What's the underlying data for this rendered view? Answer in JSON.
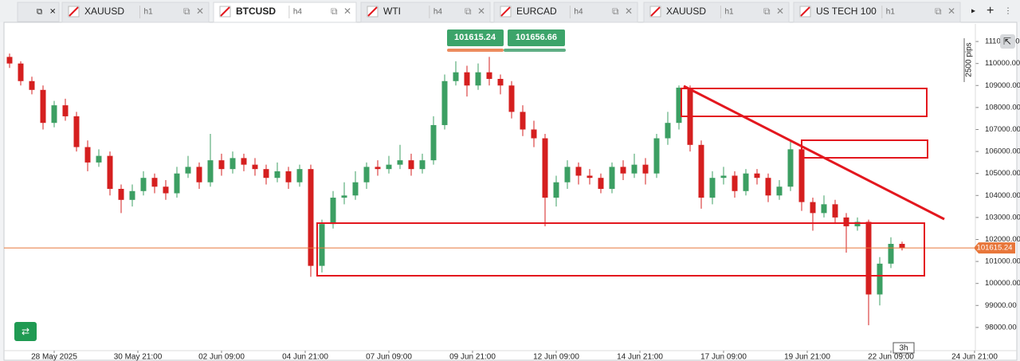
{
  "tabs": [
    {
      "symbol": "XAUUSD",
      "timeframe": "h1"
    },
    {
      "symbol": "BTCUSD",
      "timeframe": "h4"
    },
    {
      "symbol": "WTI",
      "timeframe": "h4"
    },
    {
      "symbol": "EURCAD",
      "timeframe": "h4"
    },
    {
      "symbol": "XAUUSD",
      "timeframe": "h1"
    },
    {
      "symbol": "US TECH 100",
      "timeframe": "h1"
    }
  ],
  "chart_data": {
    "type": "candlestick",
    "ylim": [
      97000,
      111800
    ],
    "yticks": [
      {
        "value": 98000,
        "label": "98000.00"
      },
      {
        "value": 99000,
        "label": "99000.00"
      },
      {
        "value": 100000,
        "label": "100000.00"
      },
      {
        "value": 101000,
        "label": "101000.00"
      },
      {
        "value": 102000,
        "label": "102000.00"
      },
      {
        "value": 103000,
        "label": "103000.00"
      },
      {
        "value": 104000,
        "label": "104000.00"
      },
      {
        "value": 105000,
        "label": "105000.00"
      },
      {
        "value": 106000,
        "label": "106000.00"
      },
      {
        "value": 107000,
        "label": "107000.00"
      },
      {
        "value": 108000,
        "label": "108000.00"
      },
      {
        "value": 109000,
        "label": "109000.00"
      },
      {
        "value": 110000,
        "label": "110000.00"
      },
      {
        "value": 111000,
        "label": "111000.00"
      }
    ],
    "xtick_labels": [
      "28 May 2025",
      "30 May 21:00",
      "02 Jun 09:00",
      "04 Jun 21:00",
      "07 Jun 09:00",
      "09 Jun 21:00",
      "12 Jun 09:00",
      "14 Jun 21:00",
      "17 Jun 09:00",
      "19 Jun 21:00",
      "22 Jun 09:00",
      "24 Jun 21:00"
    ],
    "candles": {
      "open": [
        110300,
        110000,
        109200,
        108800,
        107300,
        108100,
        107600,
        106200,
        105500,
        105800,
        104300,
        103800,
        104200,
        104800,
        104400,
        104100,
        105000,
        105300,
        104600,
        105600,
        105200,
        105700,
        105400,
        105200,
        104800,
        105100,
        104600,
        105200,
        100800,
        102700,
        103900,
        104000,
        104600,
        105300,
        105200,
        105400,
        105600,
        105200,
        105600,
        107200,
        109200,
        109600,
        109000,
        109600,
        109300,
        109000,
        107800,
        107000,
        106600,
        103900,
        104600,
        105300,
        104900,
        104800,
        104300,
        105300,
        105000,
        105400,
        105000,
        106600,
        107300,
        108900,
        106300,
        103900,
        104800,
        104900,
        104200,
        105000,
        104800,
        104000,
        104400,
        106100,
        103700,
        103200,
        103600,
        103000,
        102600,
        102800,
        99500,
        100900,
        101800
      ],
      "high": [
        110450,
        110100,
        109400,
        109000,
        108300,
        108400,
        107800,
        106500,
        106100,
        106000,
        104500,
        104500,
        105100,
        105000,
        104700,
        105300,
        105800,
        105500,
        106800,
        105900,
        106000,
        105900,
        105700,
        105400,
        105500,
        105300,
        105400,
        105400,
        102900,
        104200,
        104600,
        105100,
        105500,
        105600,
        105800,
        106300,
        105900,
        105900,
        107600,
        109500,
        110100,
        109900,
        110000,
        110300,
        109500,
        109200,
        108100,
        107400,
        106800,
        104900,
        105600,
        105500,
        105200,
        105000,
        105500,
        105600,
        105900,
        105700,
        106800,
        107800,
        109000,
        109000,
        106500,
        105100,
        105300,
        105100,
        105200,
        105200,
        105000,
        104700,
        106500,
        106300,
        103900,
        104000,
        103800,
        103200,
        103000,
        102900,
        101200,
        102100,
        101900
      ],
      "low": [
        109800,
        109000,
        108600,
        107000,
        107100,
        107400,
        106000,
        105100,
        105300,
        104000,
        103200,
        103500,
        104000,
        104100,
        103800,
        103900,
        104800,
        104300,
        104400,
        104900,
        105000,
        105100,
        104900,
        104500,
        104600,
        104300,
        104400,
        100300,
        100500,
        102500,
        103600,
        103800,
        104300,
        104900,
        105000,
        105200,
        104900,
        105000,
        105400,
        107000,
        109000,
        108500,
        108800,
        109000,
        108600,
        107500,
        106700,
        106200,
        102600,
        103500,
        104300,
        104500,
        104500,
        104100,
        104100,
        104700,
        104800,
        104500,
        104800,
        106300,
        107000,
        106000,
        103400,
        103600,
        104500,
        103900,
        104000,
        104500,
        103700,
        103800,
        104200,
        103300,
        102400,
        103000,
        102700,
        101400,
        102400,
        98100,
        99000,
        100700,
        101500
      ],
      "close": [
        110000,
        109200,
        108800,
        107300,
        108100,
        107600,
        106200,
        105500,
        105800,
        104300,
        103800,
        104200,
        104800,
        104400,
        104100,
        105000,
        105300,
        104600,
        105600,
        105200,
        105700,
        105400,
        105200,
        104800,
        105100,
        104600,
        105200,
        100800,
        102700,
        103900,
        104000,
        104600,
        105300,
        105200,
        105400,
        105600,
        105200,
        105600,
        107200,
        109200,
        109600,
        109000,
        109600,
        109300,
        109000,
        107800,
        107000,
        106600,
        103900,
        104600,
        105300,
        104900,
        104800,
        104300,
        105300,
        105000,
        105400,
        105000,
        106600,
        107300,
        108900,
        106300,
        103900,
        104800,
        104900,
        104200,
        105000,
        104800,
        104000,
        104400,
        106100,
        103700,
        103200,
        103600,
        103000,
        102600,
        102800,
        99500,
        100900,
        101800,
        101600
      ]
    },
    "colors": {
      "up": "#3c9f63",
      "down": "#d51f1f",
      "price_line": "#e8763a"
    },
    "current_price": 101615.24,
    "sell_price": "101615.24",
    "buy_price": "101656.66",
    "range_label": "2500 pips",
    "timeframe_label": "3h"
  }
}
